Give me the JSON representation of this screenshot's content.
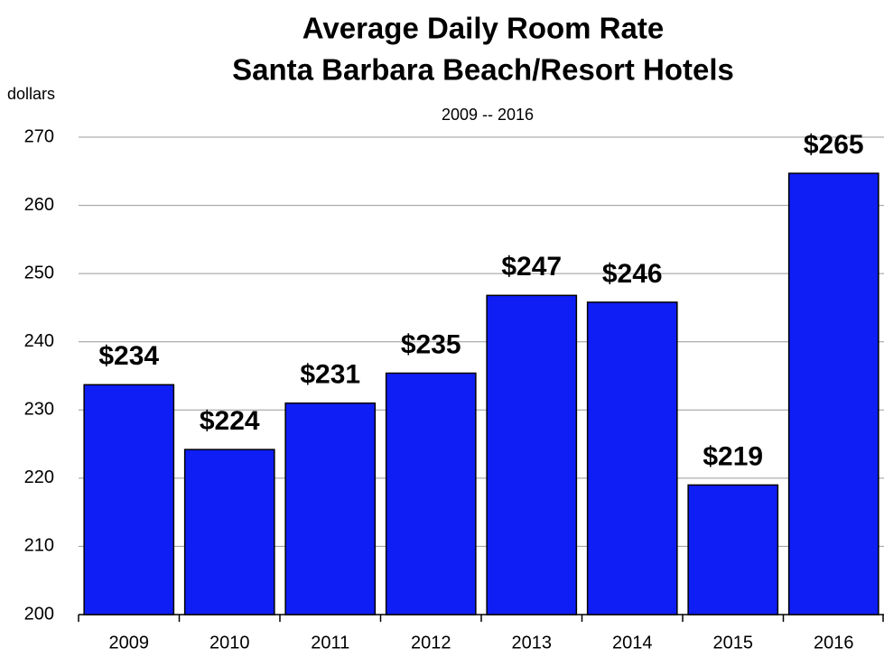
{
  "chart_data": {
    "type": "bar",
    "title": [
      "Average Daily Room Rate",
      "Santa Barbara Beach/Resort Hotels"
    ],
    "subtitle": "2009 -- 2016",
    "y_label": "dollars",
    "categories": [
      "2009",
      "2010",
      "2011",
      "2012",
      "2013",
      "2014",
      "2015",
      "2016"
    ],
    "values": [
      233.7,
      224.2,
      231.0,
      235.4,
      246.8,
      245.8,
      219.0,
      264.7
    ],
    "value_labels": [
      "$234",
      "$224",
      "$231",
      "$235",
      "$247",
      "$246",
      "$219",
      "$265"
    ],
    "color": "#0f1ef5",
    "ylim": [
      200,
      270
    ],
    "yticks": [
      200,
      210,
      220,
      230,
      240,
      250,
      260,
      270
    ],
    "grid": true
  }
}
